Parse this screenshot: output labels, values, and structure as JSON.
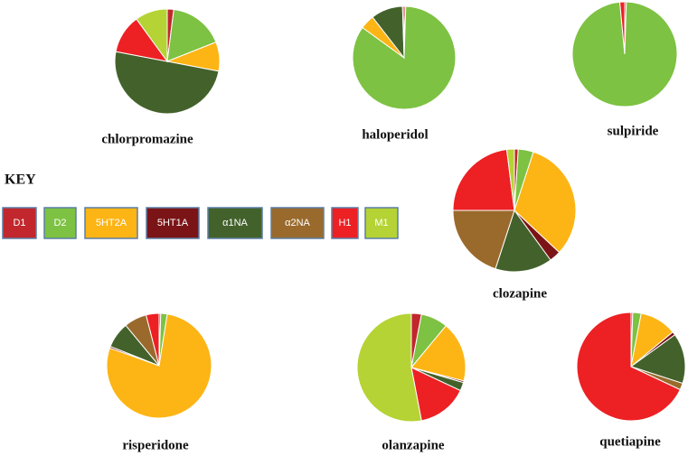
{
  "key_title": "KEY",
  "legend": [
    {
      "name": "D1",
      "color": "#c1272d"
    },
    {
      "name": "D2",
      "color": "#7dc242"
    },
    {
      "name": "5HT2A",
      "color": "#fdb515"
    },
    {
      "name": "5HT1A",
      "color": "#7b1416"
    },
    {
      "name": "α1NA",
      "color": "#43622b"
    },
    {
      "name": "α2NA",
      "color": "#9a6a2c"
    },
    {
      "name": "H1",
      "color": "#ed2024"
    },
    {
      "name": "M1",
      "color": "#b5d334"
    }
  ],
  "chart_data": [
    {
      "type": "pie",
      "title": "chlorpromazine",
      "values": [
        2,
        17,
        9,
        0,
        50,
        0,
        12,
        10
      ]
    },
    {
      "type": "pie",
      "title": "haloperidol",
      "values": [
        0.5,
        84.5,
        4.5,
        0,
        10,
        0,
        0.5,
        0
      ]
    },
    {
      "type": "pie",
      "title": "sulpiride",
      "values": [
        0.5,
        98,
        0,
        0,
        0,
        0,
        1.5,
        0
      ]
    },
    {
      "type": "pie",
      "title": "clozapine",
      "values": [
        1,
        4,
        32,
        3,
        15,
        20,
        23,
        2
      ]
    },
    {
      "type": "pie",
      "title": "risperidone",
      "values": [
        0.5,
        2,
        78,
        0.5,
        8,
        7,
        4,
        0
      ]
    },
    {
      "type": "pie",
      "title": "olanzapine",
      "values": [
        3,
        8,
        18,
        0.5,
        2.5,
        0,
        15,
        53
      ]
    },
    {
      "type": "pie",
      "title": "quetiapine",
      "values": [
        0.5,
        2.5,
        11,
        1,
        15,
        2,
        68,
        0
      ]
    }
  ]
}
